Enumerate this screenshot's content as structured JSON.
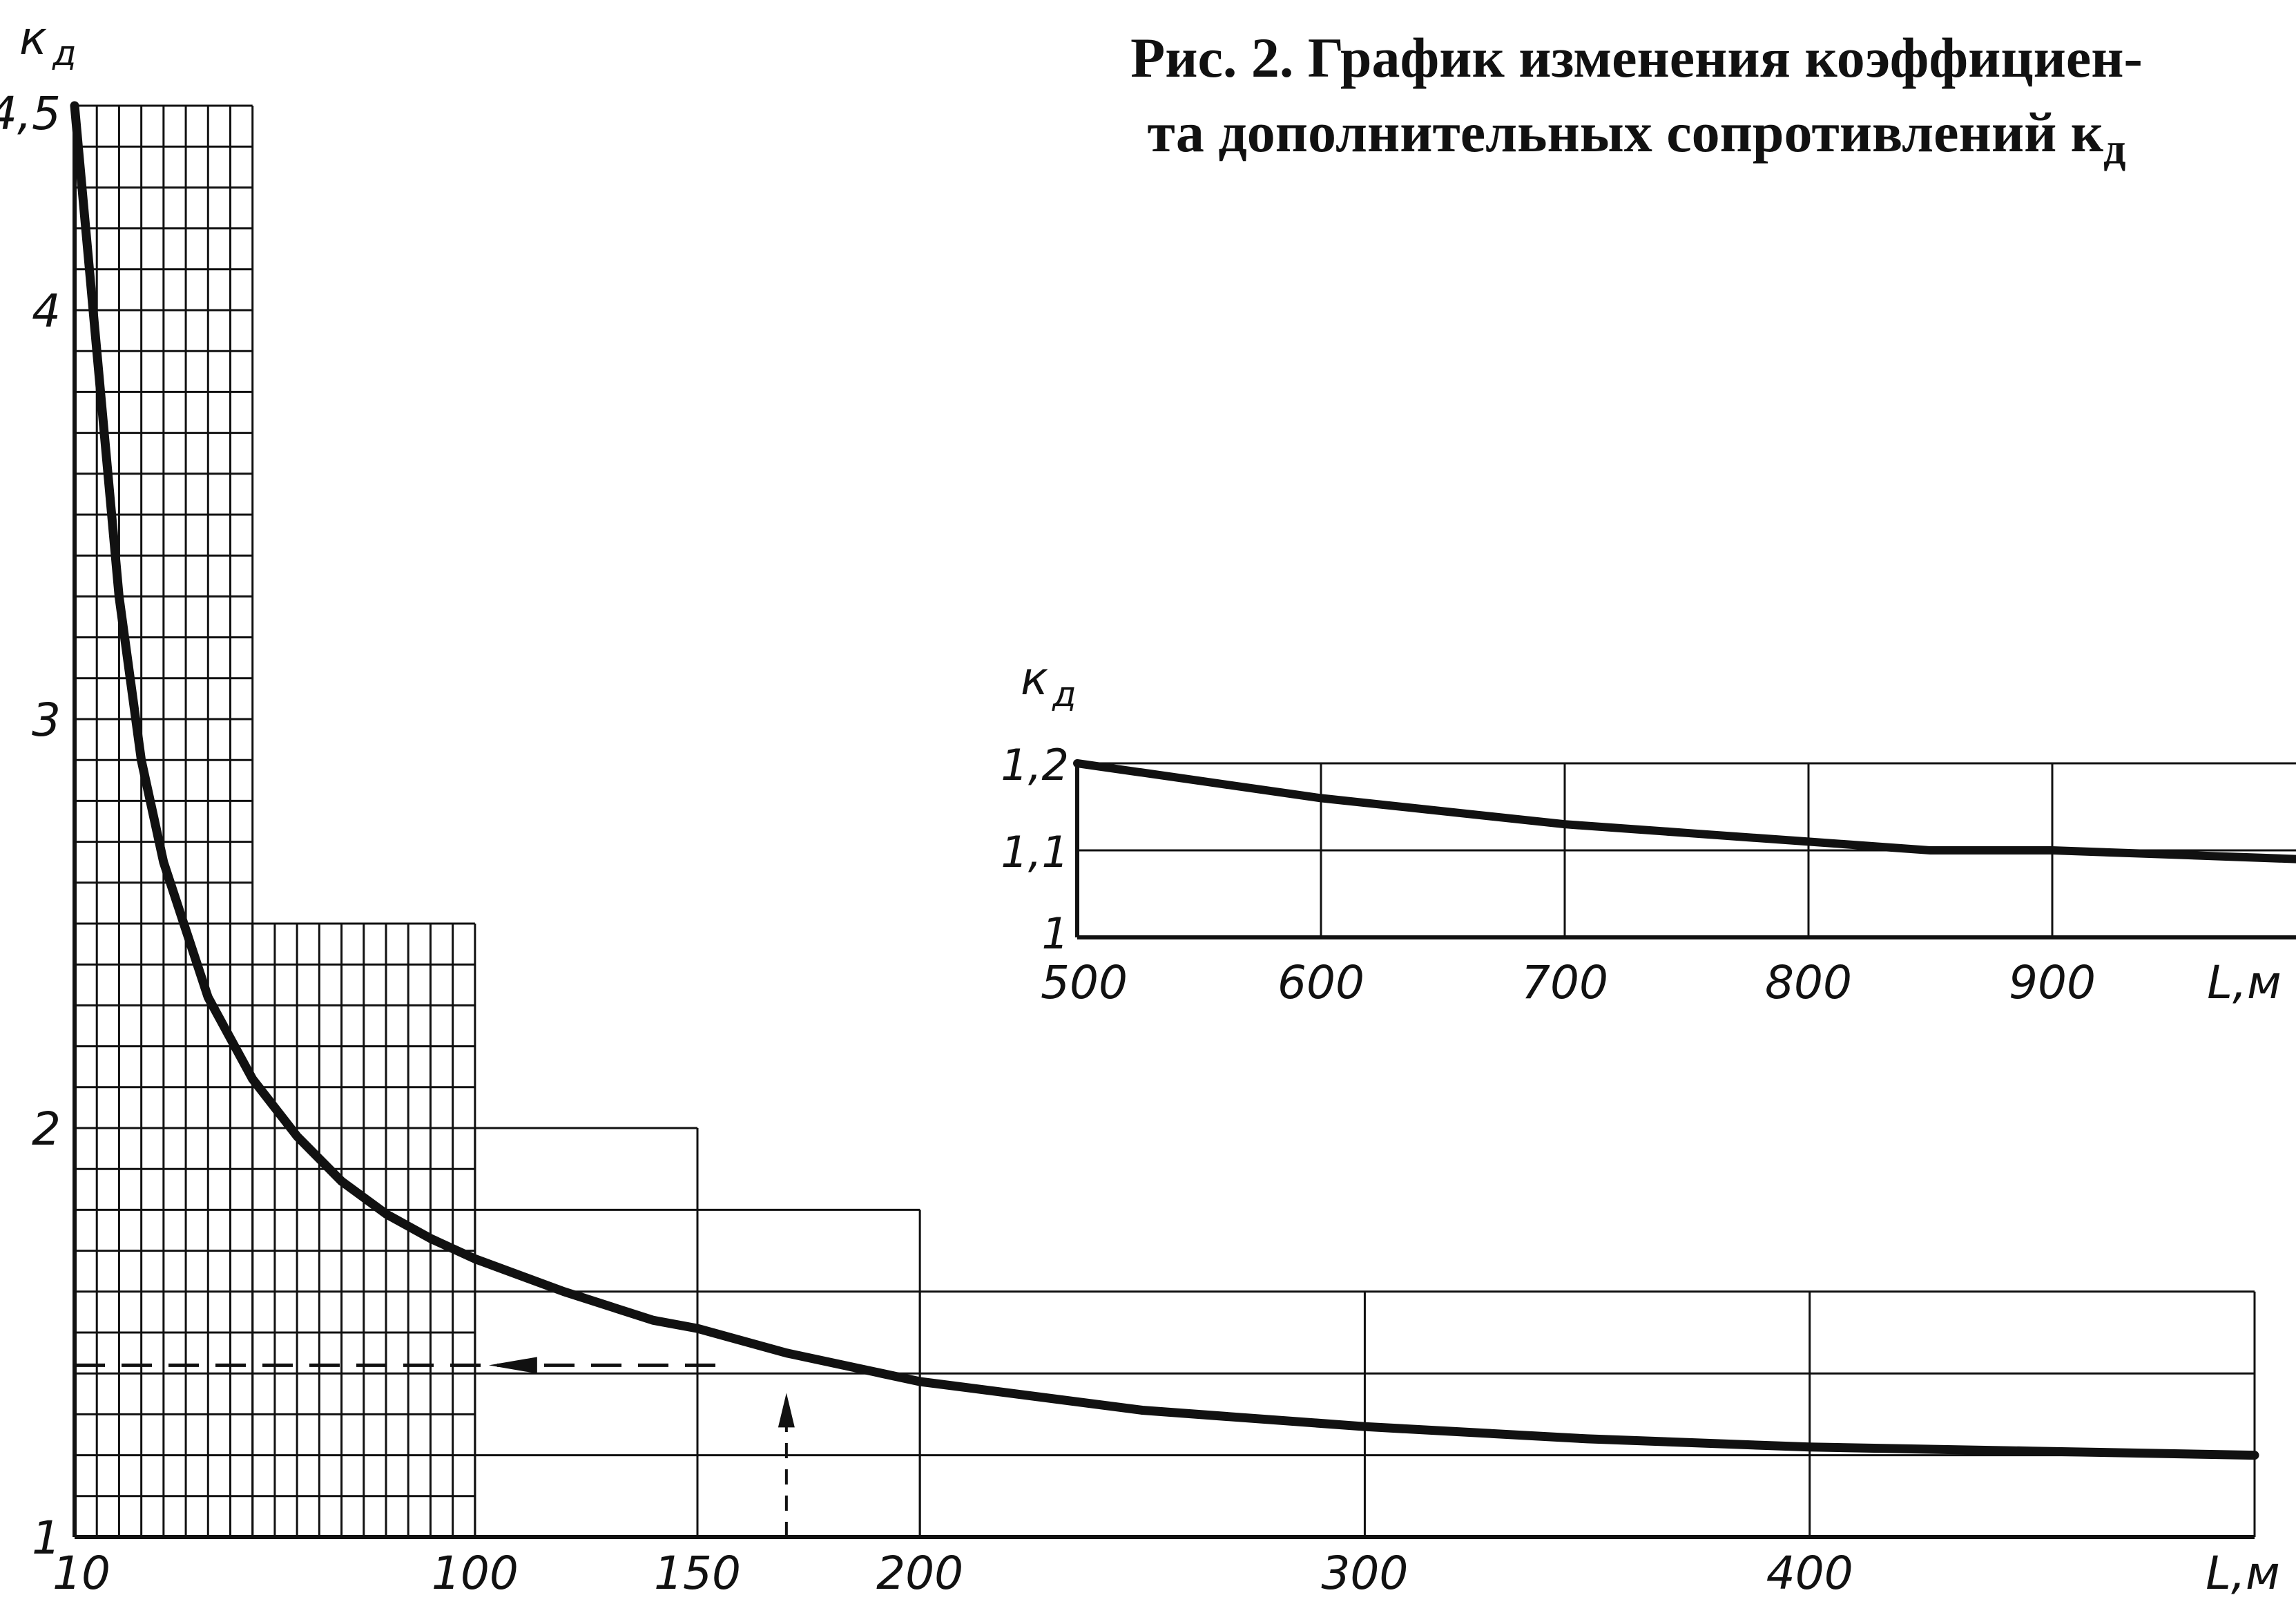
{
  "caption": {
    "line1": "Рис. 2. График изменения коэффициен-",
    "line2": "та дополнительных сопротивлений к",
    "subscript": "д"
  },
  "colors": {
    "ink": "#111111",
    "paper": "#ffffff"
  },
  "chart_data": [
    {
      "type": "line",
      "name": "main",
      "ylabel": "к",
      "ylabel_sub": "д",
      "xlabel": "L,м",
      "xlim": [
        10,
        500
      ],
      "ylim": [
        1,
        4.5
      ],
      "x_ticks": [
        10,
        100,
        150,
        200,
        300,
        400
      ],
      "x_tick_labels": [
        "10",
        "100",
        "150",
        "200",
        "300",
        "400"
      ],
      "y_ticks": [
        1,
        2,
        3,
        4,
        4.5
      ],
      "y_tick_labels": [
        "1",
        "2",
        "3",
        "4",
        "4,5"
      ],
      "grid": true,
      "series": [
        {
          "x": [
            10,
            15,
            20,
            25,
            30,
            40,
            50,
            60,
            70,
            80,
            90,
            100,
            120,
            140,
            150,
            170,
            200,
            250,
            300,
            350,
            400,
            450,
            500
          ],
          "y": [
            4.5,
            3.9,
            3.3,
            2.9,
            2.65,
            2.32,
            2.12,
            1.98,
            1.87,
            1.79,
            1.73,
            1.68,
            1.6,
            1.53,
            1.51,
            1.45,
            1.38,
            1.31,
            1.27,
            1.24,
            1.22,
            1.21,
            1.2
          ]
        }
      ],
      "annotation": {
        "type": "dashed-arrow-example",
        "x": 170,
        "y": 1.42
      }
    },
    {
      "type": "line",
      "name": "inset",
      "ylabel": "к",
      "ylabel_sub": "д",
      "xlabel": "L,м",
      "xlim": [
        500,
        1000
      ],
      "ylim": [
        1,
        1.2
      ],
      "x_ticks": [
        500,
        600,
        700,
        800,
        900
      ],
      "x_tick_labels": [
        "500",
        "600",
        "700",
        "800",
        "900"
      ],
      "y_ticks": [
        1,
        1.1,
        1.2
      ],
      "y_tick_labels": [
        "1",
        "1,1",
        "1,2"
      ],
      "grid": true,
      "series": [
        {
          "x": [
            500,
            550,
            600,
            650,
            700,
            750,
            800,
            850,
            900,
            950,
            1000
          ],
          "y": [
            1.2,
            1.18,
            1.16,
            1.145,
            1.13,
            1.12,
            1.11,
            1.1,
            1.1,
            1.095,
            1.09
          ]
        }
      ]
    }
  ]
}
